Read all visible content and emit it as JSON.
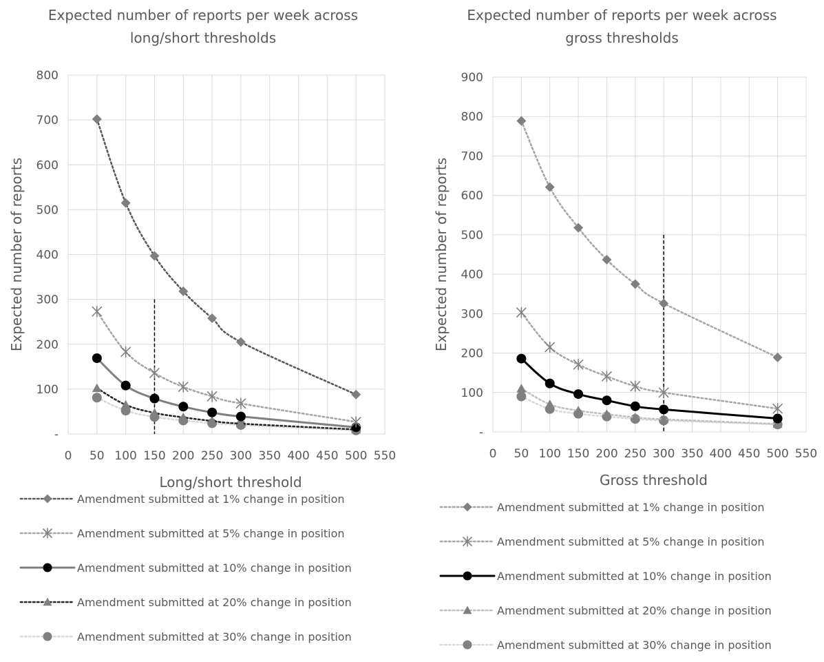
{
  "colors": {
    "series_1pct_left": "#595959",
    "series_1pct_right": "#a6a6a6",
    "series_5pct": "#a6a6a6",
    "series_10pct_left": "#7f7f7f",
    "series_10pct_right": "#000000",
    "series_20pct_left": "#262626",
    "series_20pct_right": "#bfbfbf",
    "series_30pct": "#d9d9d9",
    "marker_dark": "#7f7f7f",
    "marker_mid": "#808080",
    "grid": "#d9d9d9",
    "threshold_line": "#000000"
  },
  "chart_data": [
    {
      "type": "line",
      "title": "Expected number of reports per week across\nlong/short thresholds",
      "xlabel": "Long/short threshold",
      "ylabel": "Expected number of reports",
      "xlim": [
        0,
        550
      ],
      "ylim": [
        0,
        800
      ],
      "xticks": [
        "0",
        "50",
        "100",
        "150",
        "200",
        "250",
        "300",
        "350",
        "400",
        "450",
        "500",
        "550"
      ],
      "yticks": [
        "-",
        "100",
        "200",
        "300",
        "400",
        "500",
        "600",
        "700",
        "800"
      ],
      "grid": true,
      "legend_position": "bottom",
      "vertical_marker": {
        "x": 150,
        "y_top": 300
      },
      "x": [
        50,
        100,
        150,
        200,
        250,
        300,
        500
      ],
      "series": [
        {
          "name": "Amendment submitted at 1% change in position",
          "values": [
            702,
            515,
            397,
            318,
            258,
            205,
            88
          ],
          "style": "dotted",
          "marker": "diamond",
          "color_key": "series_1pct_left",
          "marker_key": "marker_dark",
          "legend_key": "legend_left.0"
        },
        {
          "name": "Amendment submitted at 5% change in position",
          "values": [
            273,
            183,
            136,
            105,
            84,
            68,
            27
          ],
          "style": "dotted",
          "marker": "star",
          "color_key": "series_5pct",
          "marker_key": "marker_mid",
          "legend_key": "legend_left.1"
        },
        {
          "name": "Amendment submitted at 10% change in position",
          "values": [
            169,
            108,
            79,
            61,
            48,
            39,
            15
          ],
          "style": "solid",
          "marker": "circle",
          "color_key": "series_10pct_left",
          "marker_key": "threshold_line",
          "legend_key": "legend_left.2"
        },
        {
          "name": "Amendment submitted at 20% change in position",
          "values": [
            102,
            65,
            47,
            37,
            29,
            23,
            10
          ],
          "style": "dotted",
          "marker": "triangle",
          "color_key": "series_20pct_left",
          "marker_key": "marker_mid",
          "legend_key": "legend_left.3"
        },
        {
          "name": "Amendment submitted at 30% change in position",
          "values": [
            81,
            52,
            38,
            30,
            24,
            20,
            8
          ],
          "style": "dotted",
          "marker": "circle",
          "color_key": "series_30pct",
          "marker_key": "marker_mid",
          "legend_key": "legend_left.4"
        }
      ]
    },
    {
      "type": "line",
      "title": "Expected number of reports per week across\ngross thresholds",
      "xlabel": "Gross threshold",
      "ylabel": "Expected number of reports",
      "xlim": [
        0,
        550
      ],
      "ylim": [
        0,
        900
      ],
      "xticks": [
        "0",
        "50",
        "100",
        "150",
        "200",
        "250",
        "300",
        "350",
        "400",
        "450",
        "500",
        "550"
      ],
      "yticks": [
        "-",
        "100",
        "200",
        "300",
        "400",
        "500",
        "600",
        "700",
        "800",
        "900"
      ],
      "grid": true,
      "legend_position": "bottom",
      "vertical_marker": {
        "x": 300,
        "y_top": 500
      },
      "x": [
        50,
        100,
        150,
        200,
        250,
        300,
        500
      ],
      "series": [
        {
          "name": "Amendment submitted at 1% change in position",
          "values": [
            789,
            621,
            518,
            437,
            375,
            326,
            189
          ],
          "style": "dotted",
          "marker": "diamond",
          "color_key": "series_1pct_right",
          "marker_key": "marker_dark",
          "legend_key": "legend_right.0"
        },
        {
          "name": "Amendment submitted at 5% change in position",
          "values": [
            303,
            215,
            171,
            141,
            116,
            100,
            59
          ],
          "style": "dotted",
          "marker": "star",
          "color_key": "series_5pct",
          "marker_key": "marker_mid",
          "legend_key": "legend_right.1"
        },
        {
          "name": "Amendment submitted at 10% change in position",
          "values": [
            186,
            123,
            96,
            80,
            65,
            57,
            34
          ],
          "style": "solid",
          "marker": "circle",
          "color_key": "series_10pct_right",
          "marker_key": "threshold_line",
          "legend_key": "legend_right.2"
        },
        {
          "name": "Amendment submitted at 20% change in position",
          "values": [
            110,
            70,
            54,
            45,
            37,
            32,
            20
          ],
          "style": "dotted",
          "marker": "triangle",
          "color_key": "series_20pct_right",
          "marker_key": "marker_mid",
          "legend_key": "legend_right.3"
        },
        {
          "name": "Amendment submitted at 30% change in position",
          "values": [
            90,
            58,
            46,
            39,
            33,
            29,
            19
          ],
          "style": "dotted",
          "marker": "circle",
          "color_key": "series_30pct",
          "marker_key": "marker_mid",
          "legend_key": "legend_right.4"
        }
      ]
    }
  ],
  "legend_left": [
    "Amendment submitted at 1% change in position",
    "Amendment submitted at 5% change in position",
    "Amendment submitted at 10% change in position",
    "Amendment submitted at 20% change in position",
    "Amendment submitted at 30% change in position"
  ],
  "legend_right": [
    "Amendment submitted at 1% change in position",
    "Amendment submitted at 5% change in position",
    "Amendment submitted at 10% change in position",
    "Amendment submitted at 20% change in position",
    "Amendment submitted at 30% change in position"
  ]
}
